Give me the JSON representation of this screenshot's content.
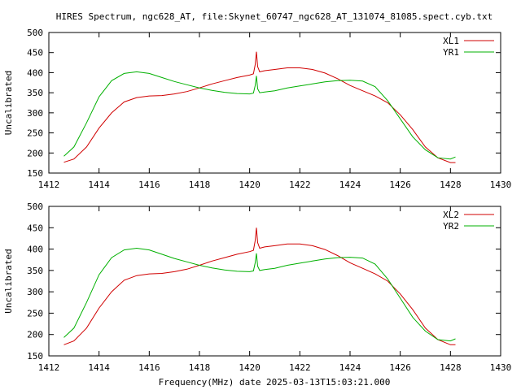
{
  "title": "HIRES Spectrum, ngc628_AT, file:Skynet_60747_ngc628_AT_131074_81085.spect.cyb.txt",
  "colors": {
    "red": "#d00000",
    "green": "#00b000",
    "axis": "#000000"
  },
  "chart_data": [
    {
      "type": "line",
      "xlabel": "",
      "ylabel": "Uncalibrated",
      "xlim": [
        1412,
        1430
      ],
      "ylim": [
        150,
        500
      ],
      "xticks": [
        1412,
        1414,
        1416,
        1418,
        1420,
        1422,
        1424,
        1426,
        1428,
        1430
      ],
      "yticks": [
        150,
        200,
        250,
        300,
        350,
        400,
        450,
        500
      ],
      "legend_position": "top-right",
      "series": [
        {
          "name": "XL1",
          "color": "#d00000",
          "x": [
            1412.6,
            1413.0,
            1413.5,
            1414.0,
            1414.5,
            1415.0,
            1415.5,
            1416.0,
            1416.5,
            1417.0,
            1417.5,
            1418.0,
            1418.5,
            1419.0,
            1419.5,
            1420.0,
            1420.15,
            1420.22,
            1420.27,
            1420.32,
            1420.4,
            1420.6,
            1421.0,
            1421.5,
            1422.0,
            1422.5,
            1423.0,
            1423.5,
            1424.0,
            1424.5,
            1425.0,
            1425.5,
            1426.0,
            1426.5,
            1427.0,
            1427.5,
            1428.0,
            1428.2
          ],
          "y": [
            177,
            185,
            215,
            262,
            300,
            327,
            338,
            342,
            343,
            347,
            353,
            362,
            372,
            380,
            388,
            394,
            397,
            420,
            452,
            415,
            402,
            405,
            408,
            412,
            412,
            408,
            399,
            385,
            368,
            355,
            342,
            325,
            295,
            258,
            215,
            188,
            176,
            176
          ]
        },
        {
          "name": "YR1",
          "color": "#00b000",
          "x": [
            1412.6,
            1413.0,
            1413.5,
            1414.0,
            1414.5,
            1415.0,
            1415.5,
            1416.0,
            1416.5,
            1417.0,
            1417.5,
            1418.0,
            1418.5,
            1419.0,
            1419.5,
            1420.0,
            1420.15,
            1420.22,
            1420.27,
            1420.32,
            1420.4,
            1420.6,
            1421.0,
            1421.5,
            1422.0,
            1422.5,
            1423.0,
            1423.5,
            1424.0,
            1424.5,
            1425.0,
            1425.5,
            1426.0,
            1426.5,
            1427.0,
            1427.5,
            1428.0,
            1428.2
          ],
          "y": [
            192,
            215,
            275,
            340,
            380,
            398,
            402,
            398,
            388,
            378,
            370,
            362,
            356,
            351,
            348,
            347,
            349,
            368,
            392,
            360,
            350,
            352,
            355,
            362,
            367,
            372,
            377,
            380,
            381,
            379,
            365,
            330,
            285,
            240,
            208,
            188,
            185,
            190
          ]
        }
      ]
    },
    {
      "type": "line",
      "xlabel": "Frequency(MHz) date 2025-03-13T15:03:21.000",
      "ylabel": "Uncalibrated",
      "xlim": [
        1412,
        1430
      ],
      "ylim": [
        150,
        500
      ],
      "xticks": [
        1412,
        1414,
        1416,
        1418,
        1420,
        1422,
        1424,
        1426,
        1428,
        1430
      ],
      "yticks": [
        150,
        200,
        250,
        300,
        350,
        400,
        450,
        500
      ],
      "legend_position": "top-right",
      "series": [
        {
          "name": "XL2",
          "color": "#d00000",
          "x": [
            1412.6,
            1413.0,
            1413.5,
            1414.0,
            1414.5,
            1415.0,
            1415.5,
            1416.0,
            1416.5,
            1417.0,
            1417.5,
            1418.0,
            1418.5,
            1419.0,
            1419.5,
            1420.0,
            1420.15,
            1420.22,
            1420.27,
            1420.32,
            1420.4,
            1420.6,
            1421.0,
            1421.5,
            1422.0,
            1422.5,
            1423.0,
            1423.5,
            1424.0,
            1424.5,
            1425.0,
            1425.5,
            1426.0,
            1426.5,
            1427.0,
            1427.5,
            1428.0,
            1428.2
          ],
          "y": [
            176,
            185,
            215,
            262,
            300,
            327,
            338,
            342,
            343,
            347,
            353,
            362,
            372,
            380,
            388,
            394,
            397,
            420,
            450,
            415,
            402,
            405,
            408,
            412,
            412,
            408,
            399,
            385,
            368,
            355,
            342,
            325,
            295,
            258,
            215,
            188,
            176,
            176
          ]
        },
        {
          "name": "YR2",
          "color": "#00b000",
          "x": [
            1412.6,
            1413.0,
            1413.5,
            1414.0,
            1414.5,
            1415.0,
            1415.5,
            1416.0,
            1416.5,
            1417.0,
            1417.5,
            1418.0,
            1418.5,
            1419.0,
            1419.5,
            1420.0,
            1420.15,
            1420.22,
            1420.27,
            1420.32,
            1420.4,
            1420.6,
            1421.0,
            1421.5,
            1422.0,
            1422.5,
            1423.0,
            1423.5,
            1424.0,
            1424.5,
            1425.0,
            1425.5,
            1426.0,
            1426.5,
            1427.0,
            1427.5,
            1428.0,
            1428.2
          ],
          "y": [
            193,
            215,
            275,
            340,
            380,
            398,
            402,
            398,
            388,
            378,
            370,
            362,
            356,
            351,
            348,
            347,
            349,
            368,
            390,
            360,
            350,
            352,
            355,
            362,
            367,
            372,
            377,
            380,
            381,
            379,
            365,
            330,
            285,
            240,
            208,
            188,
            185,
            190
          ]
        }
      ]
    }
  ]
}
